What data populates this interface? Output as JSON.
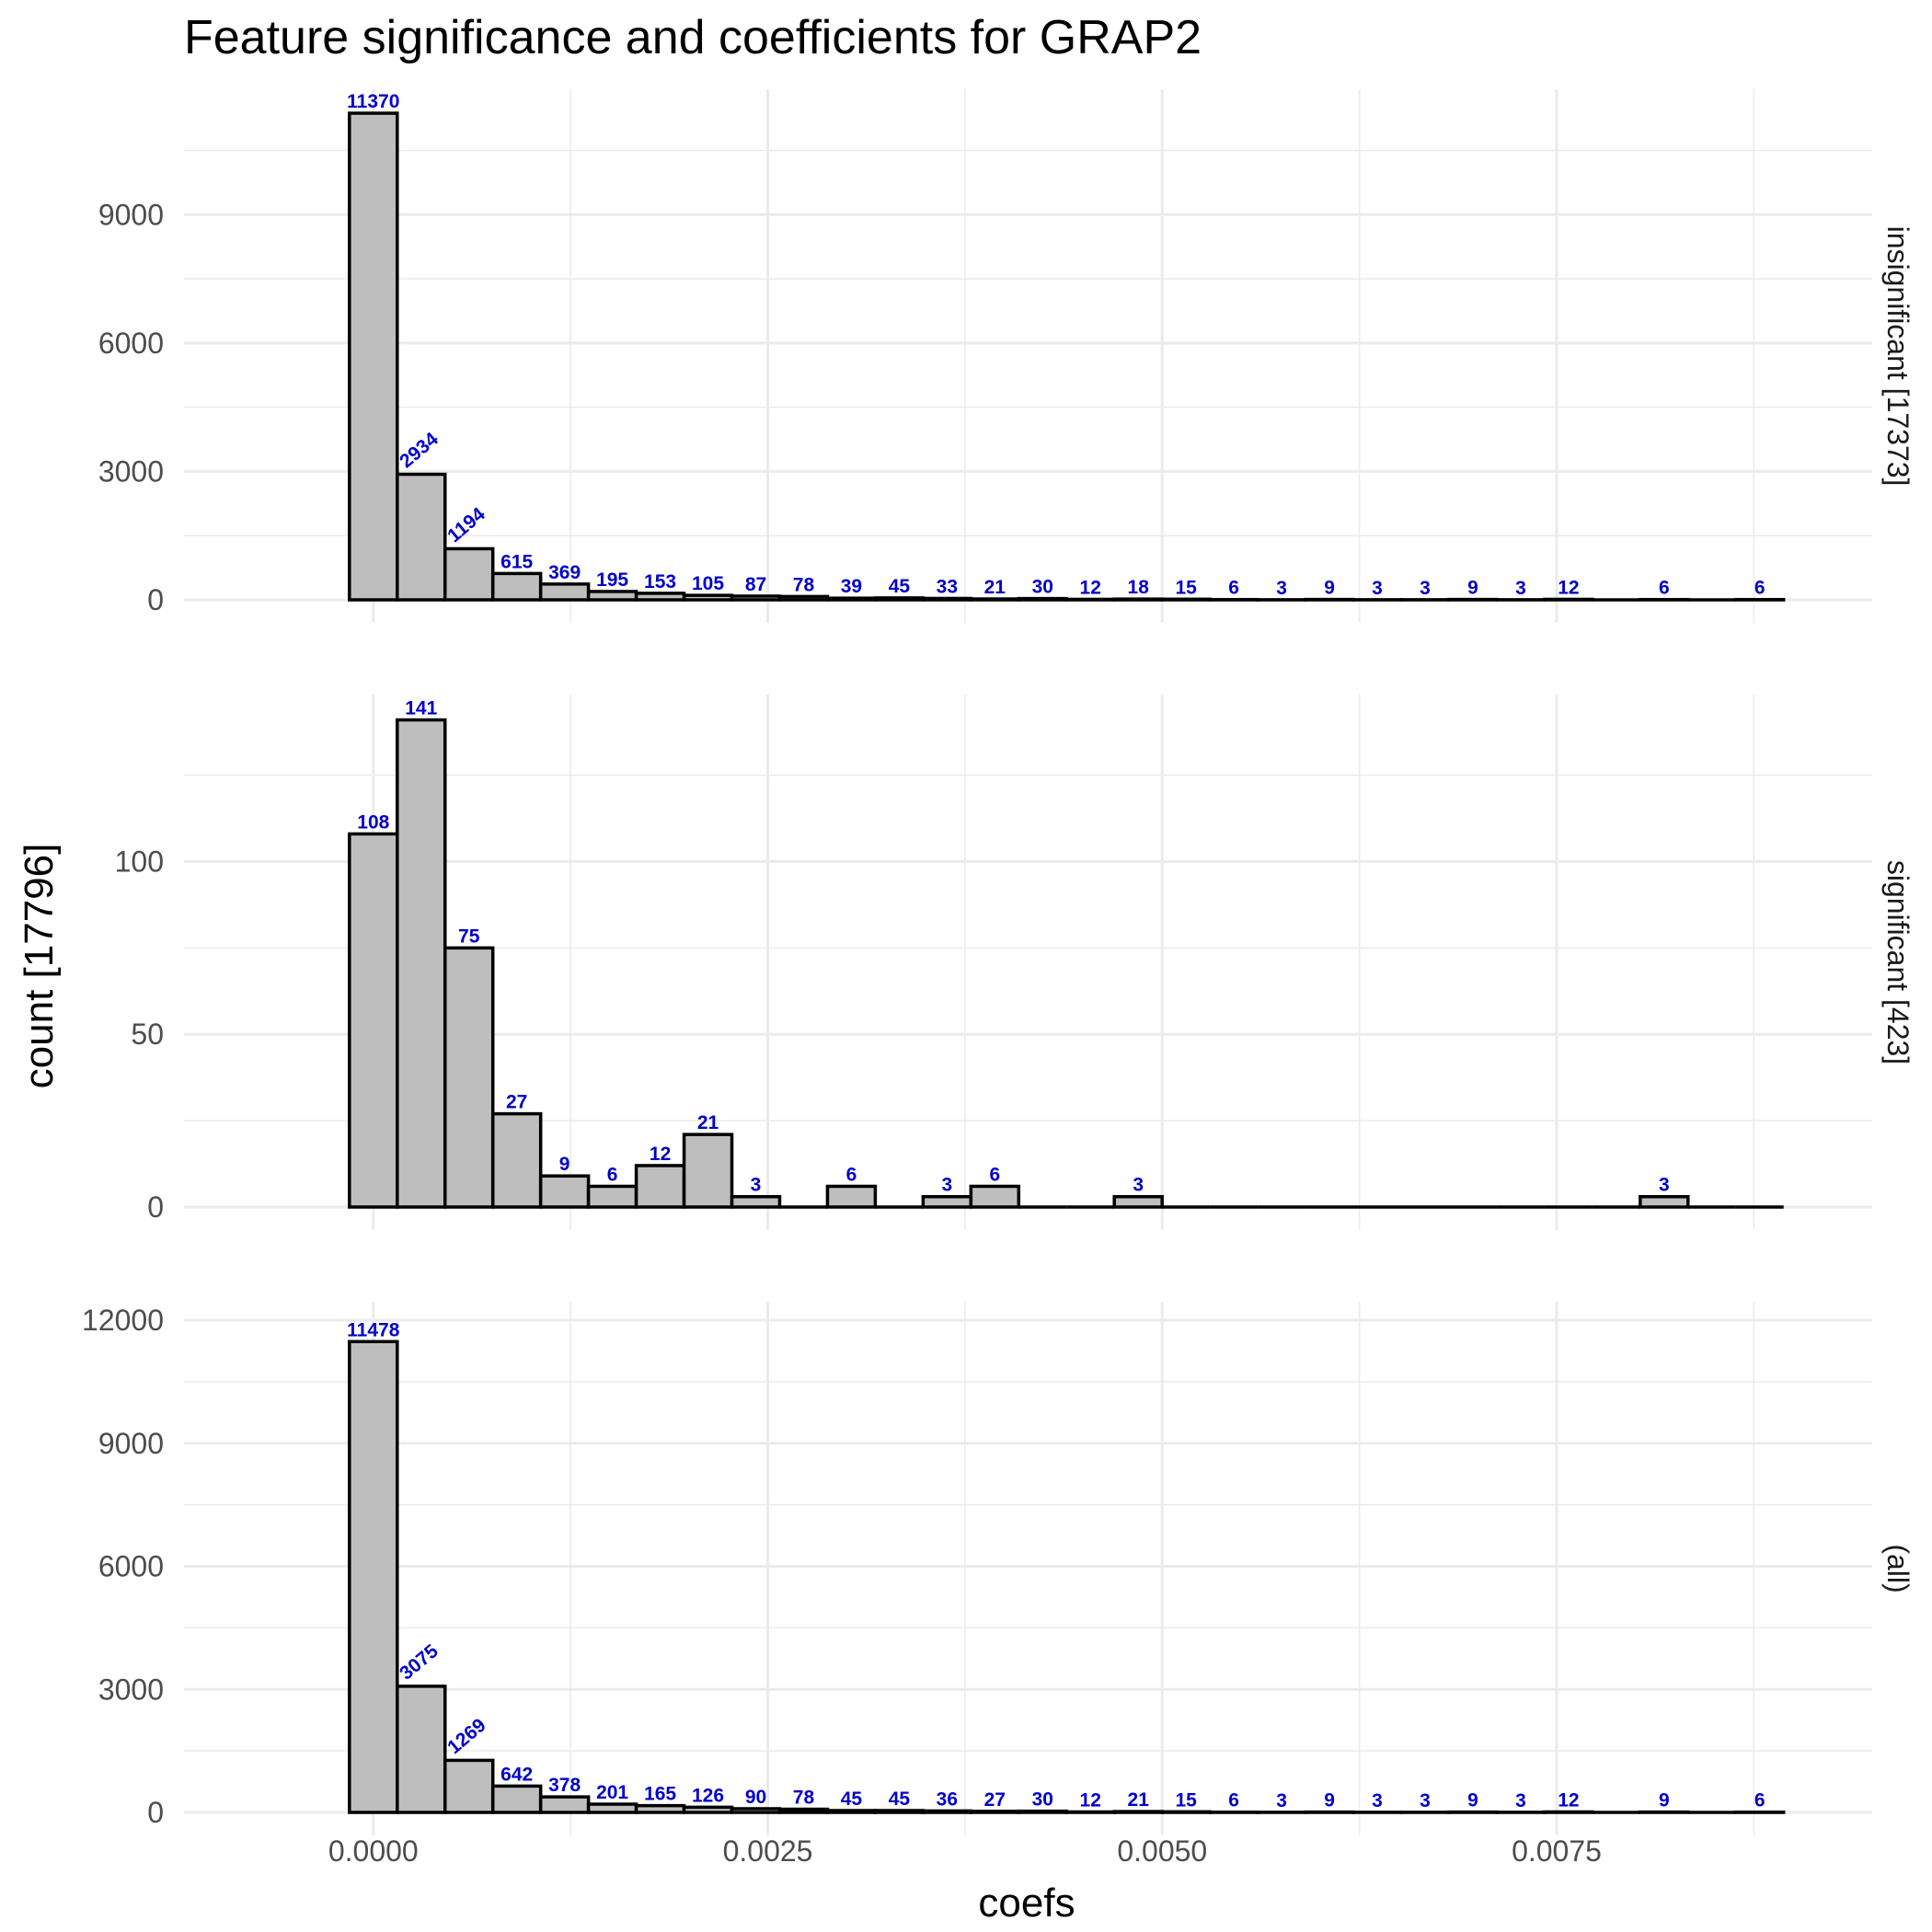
{
  "chart_data": {
    "type": "bar",
    "title": "Feature significance and coefficients for GRAP2",
    "xlabel": "coefs",
    "ylabel": "count [17796]",
    "xlim": [
      -0.0012,
      0.0095
    ],
    "x_ticks": [
      0.0,
      0.0025,
      0.005,
      0.0075
    ],
    "x_tick_labels": [
      "0.0000",
      "0.0025",
      "0.0050",
      "0.0075"
    ],
    "bin_width": 0.000303,
    "bin_centers": [
      0.0,
      0.000303,
      0.000606,
      0.000909,
      0.001212,
      0.001515,
      0.001818,
      0.002121,
      0.002424,
      0.002727,
      0.00303,
      0.003333,
      0.003636,
      0.003939,
      0.004242,
      0.004545,
      0.004848,
      0.005151,
      0.005454,
      0.005757,
      0.00606,
      0.006363,
      0.006666,
      0.006969,
      0.007272,
      0.007575,
      0.007878,
      0.008181,
      0.008484,
      0.008787
    ],
    "grid": true,
    "facets": [
      {
        "strip": "insignificant [17373]",
        "ylim": [
          0,
          11500
        ],
        "y_ticks": [
          0,
          3000,
          6000,
          9000
        ],
        "values": [
          11370,
          2934,
          1194,
          615,
          369,
          195,
          153,
          105,
          87,
          78,
          39,
          45,
          33,
          21,
          30,
          12,
          18,
          15,
          6,
          3,
          9,
          3,
          3,
          9,
          3,
          12,
          0,
          6,
          0,
          6
        ],
        "labels": [
          "11370",
          "2934",
          "1194",
          "615",
          "369",
          "195",
          "153",
          "105",
          "87",
          "78",
          "39",
          "45",
          "33",
          "21",
          "30",
          "12",
          "18",
          "15",
          "6",
          "3",
          "9",
          "3",
          "3",
          "9",
          "3",
          "12",
          "",
          "6",
          "",
          "6"
        ]
      },
      {
        "strip": "significant [423]",
        "ylim": [
          0,
          143
        ],
        "y_ticks": [
          0,
          50,
          100
        ],
        "values": [
          108,
          141,
          75,
          27,
          9,
          6,
          12,
          21,
          3,
          0,
          6,
          0,
          3,
          6,
          0,
          0,
          3,
          0,
          0,
          0,
          0,
          0,
          0,
          0,
          0,
          0,
          0,
          3,
          0,
          0
        ],
        "labels": [
          "108",
          "141",
          "75",
          "27",
          "9",
          "6",
          "12",
          "21",
          "3",
          "",
          "6",
          "",
          "3",
          "6",
          "",
          "",
          "3",
          "",
          "",
          "",
          "",
          "",
          "",
          "",
          "",
          "",
          "",
          "3",
          "",
          ""
        ]
      },
      {
        "strip": "(all)",
        "ylim": [
          0,
          12000
        ],
        "y_ticks": [
          0,
          3000,
          6000,
          9000,
          12000
        ],
        "values": [
          11478,
          3075,
          1269,
          642,
          378,
          201,
          165,
          126,
          90,
          78,
          45,
          45,
          36,
          27,
          30,
          12,
          21,
          15,
          6,
          3,
          9,
          3,
          3,
          9,
          3,
          12,
          0,
          9,
          0,
          6
        ],
        "labels": [
          "11478",
          "3075",
          "1269",
          "642",
          "378",
          "201",
          "165",
          "126",
          "90",
          "78",
          "45",
          "45",
          "36",
          "27",
          "30",
          "12",
          "21",
          "15",
          "6",
          "3",
          "9",
          "3",
          "3",
          "9",
          "3",
          "12",
          "",
          "9",
          "",
          "6"
        ]
      }
    ]
  }
}
